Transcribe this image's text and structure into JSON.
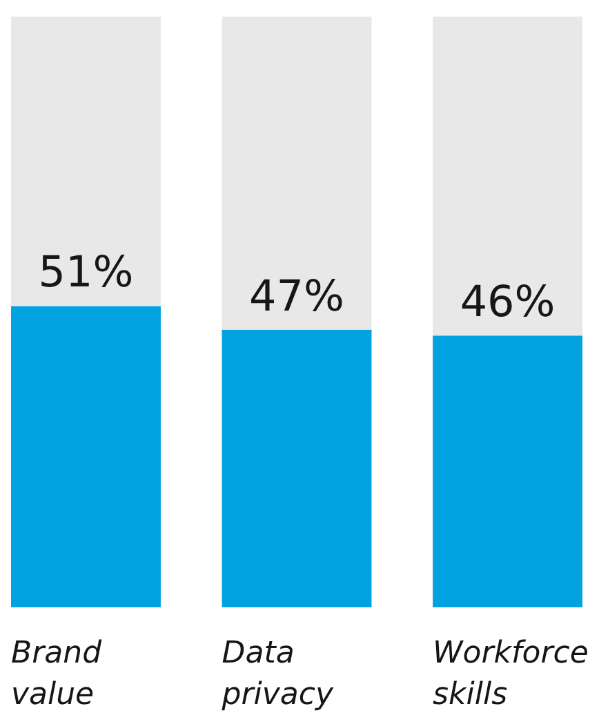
{
  "chart_data": {
    "type": "bar",
    "stacked": true,
    "categories": [
      "Brand value",
      "Data privacy",
      "Workforce skills"
    ],
    "series": [
      {
        "color": "#00a3e0",
        "values": [
          51,
          47,
          46
        ],
        "value_labels": [
          "51%",
          "47%",
          "46%"
        ]
      },
      {
        "color": "#e8e8e8",
        "values": [
          49,
          53,
          54
        ]
      }
    ],
    "ylim": [
      0,
      100
    ],
    "tick_labels": "x"
  }
}
